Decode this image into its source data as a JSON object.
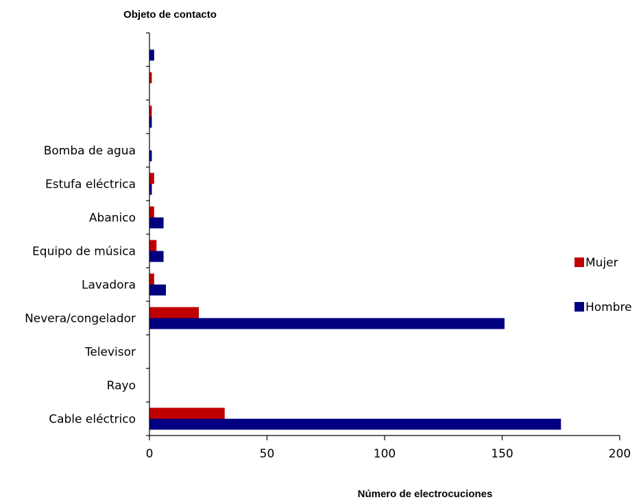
{
  "chart_data": {
    "type": "bar",
    "orientation": "horizontal",
    "title": "",
    "ylabel": "Objeto de contacto",
    "xlabel": "Número de electrocuciones",
    "xlim": [
      0,
      200
    ],
    "x_ticks": [
      "0",
      "50",
      "100",
      "150",
      "200"
    ],
    "x_tick_values": [
      0,
      50,
      100,
      150,
      200
    ],
    "grid": false,
    "legend_position": "right",
    "categories": [
      "",
      "",
      "",
      "Bomba de agua",
      "Estufa eléctrica",
      "Abanico",
      "Equipo de música",
      "Lavadora",
      "Nevera/congelador",
      "Televisor",
      "Rayo",
      "Cable eléctrico"
    ],
    "series": [
      {
        "name": "Mujer",
        "color": "#c00000",
        "values": [
          0,
          1,
          1,
          0,
          2,
          2,
          3,
          2,
          21,
          0,
          0,
          32
        ]
      },
      {
        "name": "Hombre",
        "color": "#000080",
        "values": [
          2,
          0,
          1,
          1,
          1,
          6,
          6,
          7,
          151,
          0,
          0,
          175
        ]
      }
    ]
  }
}
